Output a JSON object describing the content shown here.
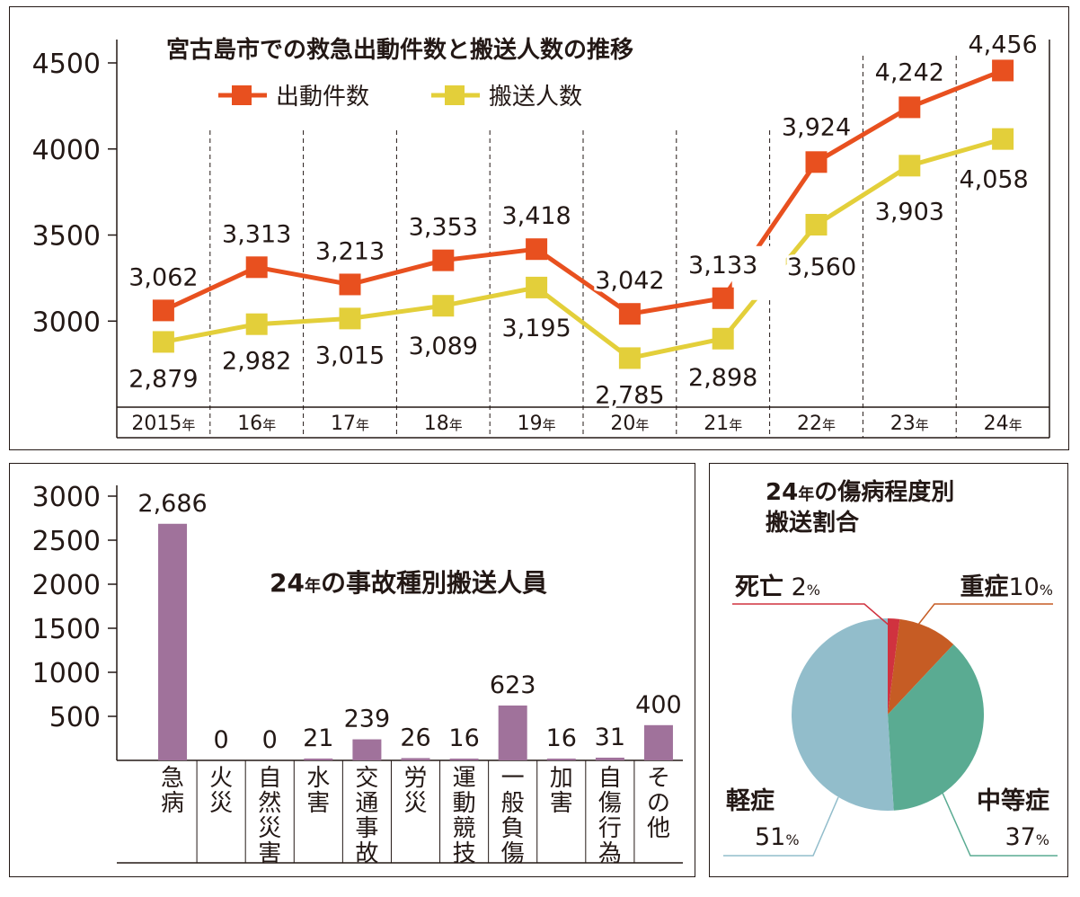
{
  "colors": {
    "dispatch": "#e8501f",
    "transport": "#e3cf3a",
    "bar": "#a0729b",
    "death": "#d0323f",
    "severe": "#c65c24",
    "moderate": "#5aab92",
    "mild": "#92bdcb",
    "ink": "#231815"
  },
  "chart_data": [
    {
      "type": "line",
      "title": "宮古島市での救急出動件数と搬送人数の推移",
      "categories": [
        "2015年",
        "16年",
        "17年",
        "18年",
        "19年",
        "20年",
        "21年",
        "22年",
        "23年",
        "24年"
      ],
      "category_labels": [
        {
          "num": "2015",
          "suffix": "年"
        },
        {
          "num": "16",
          "suffix": "年"
        },
        {
          "num": "17",
          "suffix": "年"
        },
        {
          "num": "18",
          "suffix": "年"
        },
        {
          "num": "19",
          "suffix": "年"
        },
        {
          "num": "20",
          "suffix": "年"
        },
        {
          "num": "21",
          "suffix": "年"
        },
        {
          "num": "22",
          "suffix": "年"
        },
        {
          "num": "23",
          "suffix": "年"
        },
        {
          "num": "24",
          "suffix": "年"
        }
      ],
      "series": [
        {
          "name": "出動件数",
          "values": [
            3062,
            3313,
            3213,
            3353,
            3418,
            3042,
            3133,
            3924,
            4242,
            4456
          ],
          "labels": [
            "3,062",
            "3,313",
            "3,213",
            "3,353",
            "3,418",
            "3,042",
            "3,133",
            "3,924",
            "4,242",
            "4,456"
          ]
        },
        {
          "name": "搬送人数",
          "values": [
            2879,
            2982,
            3015,
            3089,
            3195,
            2785,
            2898,
            3560,
            3903,
            4058
          ],
          "labels": [
            "2,879",
            "2,982",
            "3,015",
            "3,089",
            "3,195",
            "2,785",
            "2,898",
            "3,560",
            "3,903",
            "4,058"
          ]
        }
      ],
      "yticks": [
        "3000",
        "3500",
        "4000",
        "4500"
      ],
      "ylim": [
        2500,
        4500
      ],
      "legend_position": "top-left"
    },
    {
      "type": "bar",
      "title": "の事故種別搬送人員",
      "title_year": "24",
      "title_year_suffix": "年",
      "categories": [
        "急病",
        "火災",
        "自然災害",
        "水害",
        "交通事故",
        "労災",
        "運動競技",
        "一般負傷",
        "加害",
        "自傷行為",
        "その他"
      ],
      "values": [
        2686,
        0,
        0,
        21,
        239,
        26,
        16,
        623,
        16,
        31,
        400
      ],
      "labels": [
        "2,686",
        "0",
        "0",
        "21",
        "239",
        "26",
        "16",
        "623",
        "16",
        "31",
        "400"
      ],
      "yticks": [
        "500",
        "1000",
        "1500",
        "2000",
        "2500",
        "3000"
      ],
      "ylim": [
        0,
        3000
      ]
    },
    {
      "type": "pie",
      "title_year": "24",
      "title_line1": "の傷病程度別",
      "title_line2": "搬送割合",
      "slices": [
        {
          "name": "死亡",
          "value": 2,
          "display": "2"
        },
        {
          "name": "重症",
          "value": 10,
          "display": "10"
        },
        {
          "name": "中等症",
          "value": 37,
          "display": "37"
        },
        {
          "name": "軽症",
          "value": 51,
          "display": "51"
        }
      ],
      "percent_sign": "%"
    }
  ]
}
